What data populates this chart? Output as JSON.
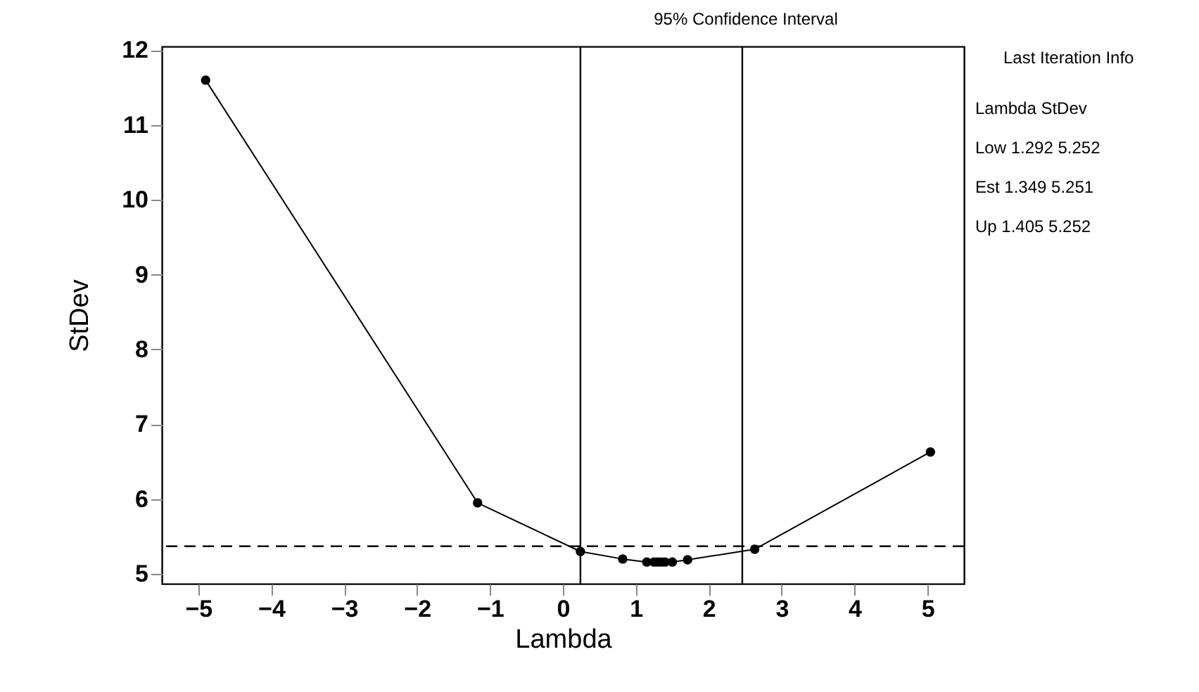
{
  "chart_data": {
    "type": "line",
    "title": "95% Confidence Interval",
    "xlabel": "Lambda",
    "ylabel": "StDev",
    "x": [
      -4.9,
      -1.17,
      0.24,
      0.82,
      1.15,
      1.25,
      1.3,
      1.35,
      1.4,
      1.5,
      1.71,
      2.63,
      5.04
    ],
    "series": [
      {
        "color": "#000000",
        "values": [
          11.6,
          5.95,
          5.3,
          5.2,
          5.16,
          5.16,
          5.16,
          5.16,
          5.16,
          5.16,
          5.19,
          5.33,
          6.63
        ]
      }
    ],
    "marker": "circle",
    "line_style": "solid",
    "grid": false,
    "xlim": [
      -5.5,
      5.5
    ],
    "xticks": [
      -5,
      -4,
      -3,
      -2,
      -1,
      0,
      1,
      2,
      3,
      4,
      5
    ],
    "ylim": [
      4.87,
      12.05
    ],
    "yticks": [
      5,
      6,
      7,
      8,
      9,
      10,
      11,
      12
    ],
    "ref_lines": [
      {
        "axis": "y",
        "value": 5.37,
        "line_style": "dashed",
        "color": "#000000"
      },
      {
        "axis": "x",
        "value": 0.24,
        "line_style": "solid",
        "color": "#000000"
      },
      {
        "axis": "x",
        "value": 2.46,
        "line_style": "solid",
        "color": "#000000"
      }
    ],
    "annotations": [
      "Last Iteration Info",
      "Lambda   StDev",
      "Low   1.292   5.252",
      "Est   1.349   5.251",
      "Up   1.405   5.252"
    ]
  }
}
